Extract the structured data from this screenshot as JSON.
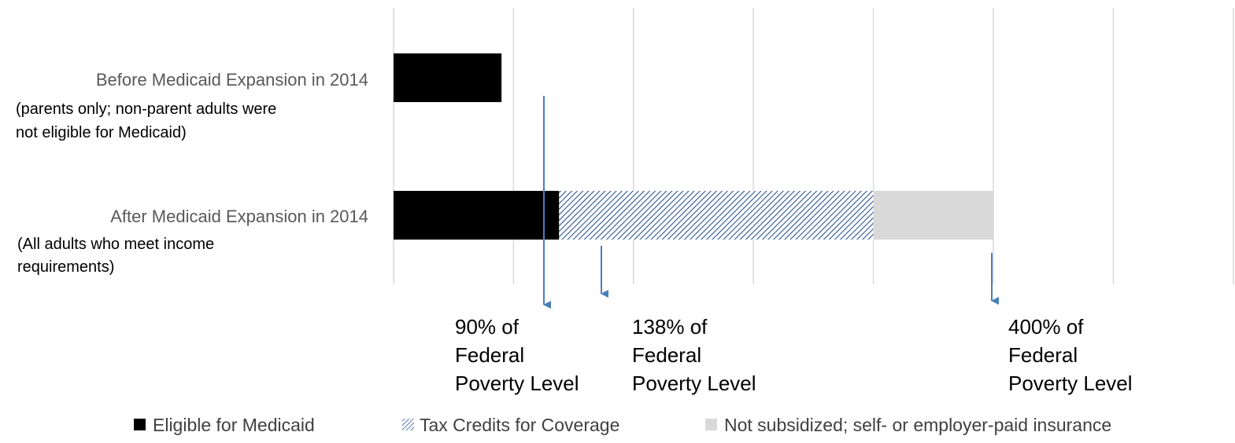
{
  "chart_data": {
    "type": "bar",
    "stacked": true,
    "orientation": "horizontal",
    "grid": true,
    "legend_position": "bottom",
    "categories": [
      {
        "label": "Before Medicaid Expansion in 2014",
        "sublabel_lines": [
          "(parents only; non-parent adults were",
          "not eligible for Medicaid)"
        ]
      },
      {
        "label": "After Medicaid Expansion in 2014",
        "sublabel_lines": [
          "(All adults who meet income",
          "requirements)"
        ]
      }
    ],
    "series": [
      {
        "name": "Eligible for Medicaid",
        "values": [
          90,
          138
        ],
        "color": "#000000",
        "pattern": "solid"
      },
      {
        "name": "Tax Credits for Coverage",
        "values": [
          0,
          262
        ],
        "color": "#2f5597",
        "pattern": "hatch"
      },
      {
        "name": "Not subsidized; self- or employer-paid insurance",
        "values": [
          0,
          100
        ],
        "color": "#d9d9d9",
        "pattern": "solid"
      }
    ],
    "xlim": [
      0,
      700
    ],
    "grid_step": 100,
    "annotations": [
      {
        "x": 90,
        "lines": [
          "90% of",
          "Federal",
          "Poverty Level"
        ]
      },
      {
        "x": 138,
        "lines": [
          "138% of",
          "Federal",
          "Poverty Level"
        ]
      },
      {
        "x": 400,
        "lines": [
          "400% of",
          "Federal",
          "Poverty Level"
        ]
      }
    ],
    "arrow_color": "#4a7ebb"
  }
}
